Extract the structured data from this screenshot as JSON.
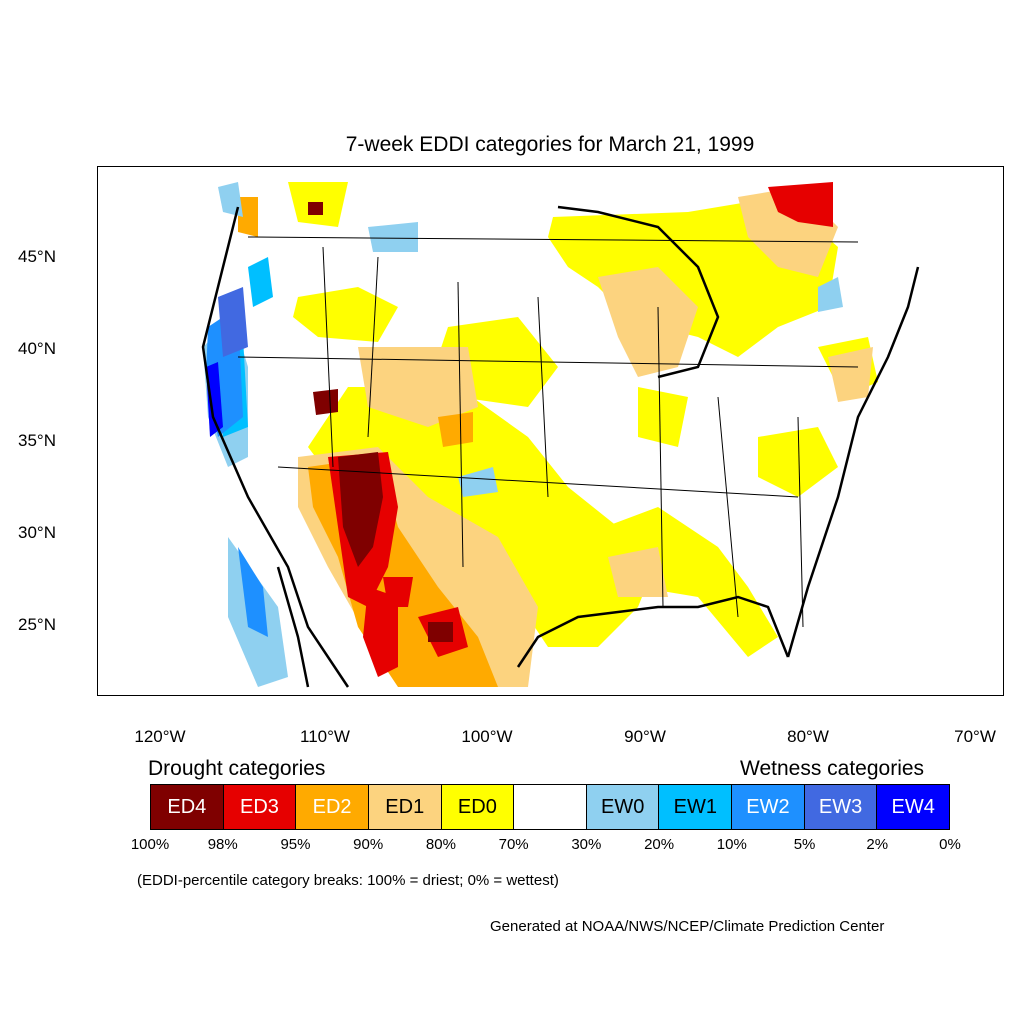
{
  "title": "7-week EDDI categories for March 21, 1999",
  "lat_labels": [
    "45°N",
    "40°N",
    "35°N",
    "30°N",
    "25°N"
  ],
  "lon_labels": [
    "120°W",
    "110°W",
    "100°W",
    "90°W",
    "80°W",
    "70°W"
  ],
  "legend": {
    "drought_heading": "Drought categories",
    "wetness_heading": "Wetness categories",
    "categories": [
      {
        "label": "ED4",
        "color": "#7f0000",
        "text_color": "#ffffff"
      },
      {
        "label": "ED3",
        "color": "#e60000",
        "text_color": "#ffffff"
      },
      {
        "label": "ED2",
        "color": "#ffaa00",
        "text_color": "#ffffff"
      },
      {
        "label": "ED1",
        "color": "#fcd37f",
        "text_color": "#000000"
      },
      {
        "label": "ED0",
        "color": "#ffff00",
        "text_color": "#000000"
      },
      {
        "label": "",
        "color": "#ffffff",
        "text_color": "#000000"
      },
      {
        "label": "EW0",
        "color": "#8fd0f0",
        "text_color": "#000000"
      },
      {
        "label": "EW1",
        "color": "#00bfff",
        "text_color": "#000000"
      },
      {
        "label": "EW2",
        "color": "#1e90ff",
        "text_color": "#ffffff"
      },
      {
        "label": "EW3",
        "color": "#4169e1",
        "text_color": "#ffffff"
      },
      {
        "label": "EW4",
        "color": "#0000ff",
        "text_color": "#ffffff"
      }
    ],
    "percentiles": [
      "100%",
      "98%",
      "95%",
      "90%",
      "80%",
      "70%",
      "30%",
      "20%",
      "10%",
      "5%",
      "2%",
      "0%"
    ]
  },
  "note": "(EDDI-percentile category breaks: 100% = driest; 0% = wettest)",
  "credit": "Generated at NOAA/NWS/NCEP/Climate Prediction Center"
}
